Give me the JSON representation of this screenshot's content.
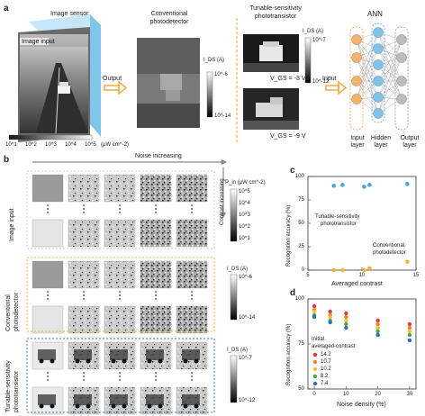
{
  "panels": {
    "a": "a",
    "b": "b",
    "c": "c",
    "d": "d"
  },
  "panel_a": {
    "sensor_title": "Image sensor",
    "image_input": "Image input",
    "conv_title_1": "Conventional",
    "conv_title_2": "photodetector",
    "output_label": "Output",
    "ids_label_1": "I_DS (A)",
    "ids_top_1": "10^-6",
    "ids_bot_1": "10^-14",
    "tun_title_1": "Tunable-sensitivity",
    "tun_title_2": "phototransistor",
    "ids_label_2": "I_DS (A)",
    "ids_top_2": "10^-7",
    "ids_bot_2": "10^-12",
    "vgs_1": "V_GS = -3 V",
    "vgs_2": "V_GS = -9 V",
    "input_label": "Input",
    "ann_title": "ANN",
    "input_layer_1": "Input",
    "input_layer_2": "layer",
    "hidden_layer_1": "Hidden",
    "hidden_layer_2": "layer",
    "output_layer_1": "Output",
    "output_layer_2": "layer",
    "scale_ticks": [
      "10^1",
      "10^2",
      "10^3",
      "10^4",
      "10^5"
    ],
    "scale_unit": "(μW cm^-2)"
  },
  "panel_b": {
    "noise_label": "Noise increasing",
    "contrast_label": "Contrast increasing",
    "pin_label": "P_in (μW cm^-2)",
    "pin_ticks": [
      "10^5",
      "10^4",
      "10^3",
      "10^2",
      "10^1"
    ],
    "row1_label": "Image input",
    "row2_label_1": "Conventional",
    "row2_label_2": "photodetector",
    "row3_label_1": "Tunable-sensitivity",
    "row3_label_2": "phototransistor",
    "ids_label_a": "I_DS (A)",
    "ids_top_a": "10^-6",
    "ids_bot_a": "10^-14",
    "ids_label_b": "I_DS (A)",
    "ids_top_b": "10^-7",
    "ids_bot_b": "10^-12"
  },
  "panel_c": {
    "ylabel": "Recognition accuracy (%)",
    "xlabel": "Averaged contrast",
    "anno_tun_1": "Tunable-sensitivity",
    "anno_tun_2": "phototransistor",
    "anno_conv_1": "Conventional",
    "anno_conv_2": "photodetector",
    "yticks": [
      "0",
      "25",
      "50",
      "75",
      "100"
    ],
    "xticks": [
      "5",
      "10",
      "15"
    ]
  },
  "panel_d": {
    "ylabel": "Recognition accuracy (%)",
    "xlabel": "Noise density (%)",
    "legend_title_1": "Initial",
    "legend_title_2": "averaged-contrast",
    "yticks": [
      "50",
      "75",
      "100"
    ],
    "xticks": [
      "0",
      "10",
      "20",
      "30"
    ]
  },
  "chart_data": [
    {
      "type": "scatter",
      "xlim": [
        5,
        15
      ],
      "ylim": [
        0,
        100
      ],
      "series": [
        {
          "color": "#4aa6dc",
          "x": [
            7.4,
            8.2,
            10.2,
            10.7,
            14.2
          ],
          "y": [
            90,
            91,
            89,
            91,
            92
          ]
        },
        {
          "color": "#f2b632",
          "x": [
            7.4,
            8.2,
            10.2,
            10.7,
            14.2
          ],
          "y": [
            0,
            0,
            0,
            2,
            9
          ]
        }
      ]
    },
    {
      "type": "scatter",
      "xlim": [
        -2,
        32
      ],
      "ylim": [
        50,
        100
      ],
      "x": [
        0,
        5,
        10,
        20,
        30
      ],
      "series": [
        {
          "name": "14.2",
          "color": "#e03a3a",
          "values": [
            96,
            93,
            92,
            88,
            86
          ]
        },
        {
          "name": "10.7",
          "color": "#f08030",
          "values": [
            94,
            91,
            90,
            86,
            84
          ]
        },
        {
          "name": "10.2",
          "color": "#f2c230",
          "values": [
            93,
            90,
            88,
            84,
            82
          ]
        },
        {
          "name": "8.2",
          "color": "#49a64a",
          "values": [
            91,
            88,
            86,
            82,
            80
          ]
        },
        {
          "name": "7.4",
          "color": "#2a6fb8",
          "values": [
            90,
            87,
            84,
            80,
            77
          ]
        }
      ]
    }
  ]
}
